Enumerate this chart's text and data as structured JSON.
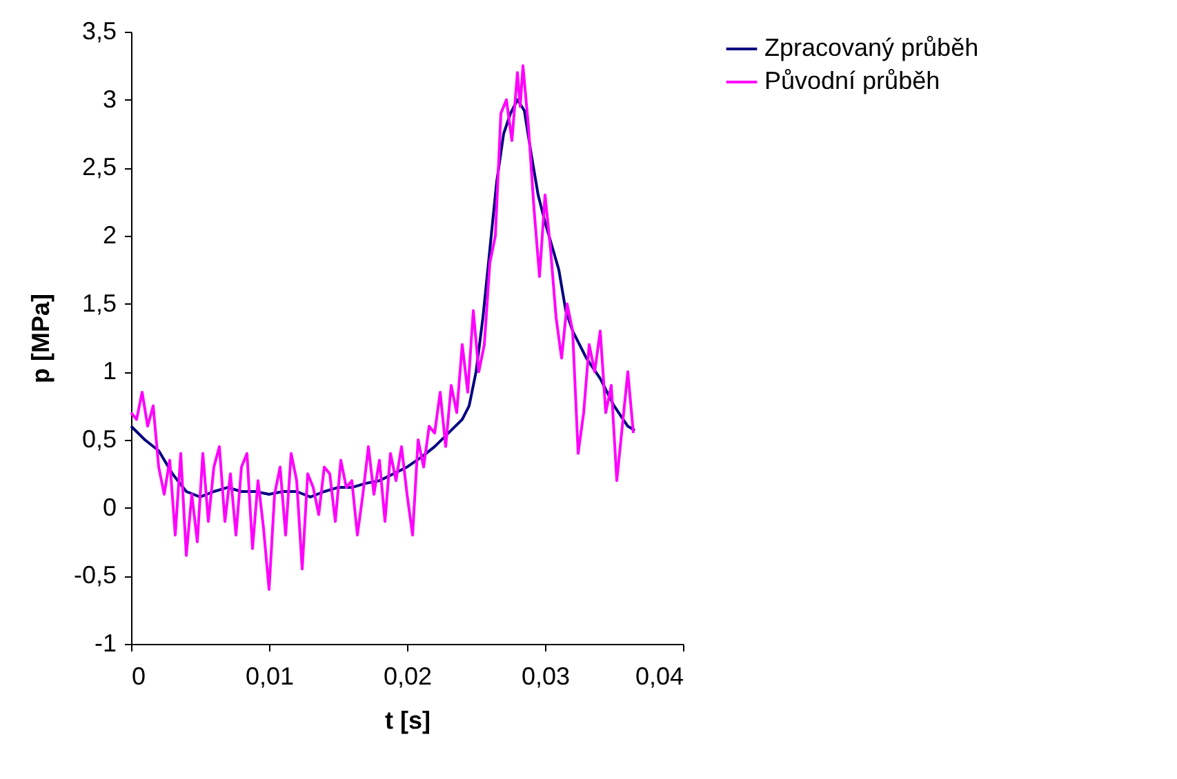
{
  "chart_data": {
    "type": "line",
    "xlabel": "t [s]",
    "ylabel": "p [MPa]",
    "xlim": [
      0,
      0.04
    ],
    "ylim": [
      -1,
      3.5
    ],
    "xticks": [
      {
        "value": 0,
        "label": "0"
      },
      {
        "value": 0.01,
        "label": "0,01"
      },
      {
        "value": 0.02,
        "label": "0,02"
      },
      {
        "value": 0.03,
        "label": "0,03"
      },
      {
        "value": 0.04,
        "label": "0,04"
      }
    ],
    "yticks": [
      {
        "value": -1,
        "label": "-1"
      },
      {
        "value": -0.5,
        "label": "-0,5"
      },
      {
        "value": 0,
        "label": "0"
      },
      {
        "value": 0.5,
        "label": "0,5"
      },
      {
        "value": 1,
        "label": "1"
      },
      {
        "value": 1.5,
        "label": "1,5"
      },
      {
        "value": 2,
        "label": "2"
      },
      {
        "value": 2.5,
        "label": "2,5"
      },
      {
        "value": 3,
        "label": "3"
      },
      {
        "value": 3.5,
        "label": "3,5"
      }
    ],
    "grid": false,
    "legend": "right",
    "marker": "none",
    "line_style": "solid",
    "series": [
      {
        "name": "Zpracovaný průběh",
        "color": "#000080",
        "x": [
          0,
          0.001,
          0.002,
          0.003,
          0.004,
          0.005,
          0.006,
          0.007,
          0.008,
          0.009,
          0.01,
          0.011,
          0.012,
          0.013,
          0.014,
          0.015,
          0.016,
          0.017,
          0.018,
          0.019,
          0.02,
          0.021,
          0.022,
          0.023,
          0.024,
          0.0245,
          0.025,
          0.0255,
          0.026,
          0.0265,
          0.027,
          0.0275,
          0.028,
          0.0285,
          0.029,
          0.0295,
          0.03,
          0.031,
          0.0315,
          0.032,
          0.033,
          0.034,
          0.035,
          0.036,
          0.0365
        ],
        "values": [
          0.6,
          0.5,
          0.42,
          0.25,
          0.12,
          0.08,
          0.12,
          0.15,
          0.12,
          0.12,
          0.1,
          0.12,
          0.12,
          0.08,
          0.12,
          0.15,
          0.15,
          0.18,
          0.2,
          0.25,
          0.3,
          0.37,
          0.45,
          0.55,
          0.65,
          0.75,
          1.0,
          1.4,
          1.9,
          2.4,
          2.75,
          2.9,
          3.0,
          2.92,
          2.6,
          2.3,
          2.1,
          1.75,
          1.45,
          1.3,
          1.1,
          0.95,
          0.75,
          0.6,
          0.57
        ]
      },
      {
        "name": "Původní průběh",
        "color": "#ff00ff",
        "x": [
          0,
          0.0004,
          0.0008,
          0.0012,
          0.0016,
          0.002,
          0.0024,
          0.0028,
          0.0032,
          0.0036,
          0.004,
          0.0044,
          0.0048,
          0.0052,
          0.0056,
          0.006,
          0.0064,
          0.0068,
          0.0072,
          0.0076,
          0.008,
          0.0084,
          0.0088,
          0.0092,
          0.0096,
          0.01,
          0.0104,
          0.0108,
          0.0112,
          0.0116,
          0.012,
          0.0124,
          0.0128,
          0.0132,
          0.0136,
          0.014,
          0.0144,
          0.0148,
          0.0152,
          0.0156,
          0.016,
          0.0164,
          0.0168,
          0.0172,
          0.0176,
          0.018,
          0.0184,
          0.0188,
          0.0192,
          0.0196,
          0.02,
          0.0204,
          0.0208,
          0.0212,
          0.0216,
          0.022,
          0.0224,
          0.0228,
          0.0232,
          0.0236,
          0.024,
          0.0244,
          0.0248,
          0.0252,
          0.0256,
          0.026,
          0.0264,
          0.0268,
          0.0272,
          0.0276,
          0.028,
          0.0282,
          0.0284,
          0.0288,
          0.0292,
          0.0296,
          0.03,
          0.0304,
          0.0308,
          0.0312,
          0.0316,
          0.032,
          0.0324,
          0.0328,
          0.0332,
          0.0336,
          0.034,
          0.0344,
          0.0348,
          0.0352,
          0.0356,
          0.036,
          0.0364
        ],
        "values": [
          0.7,
          0.65,
          0.85,
          0.6,
          0.75,
          0.3,
          0.1,
          0.35,
          -0.2,
          0.4,
          -0.35,
          0.1,
          -0.25,
          0.4,
          -0.1,
          0.3,
          0.45,
          -0.1,
          0.25,
          -0.2,
          0.3,
          0.4,
          -0.3,
          0.2,
          -0.15,
          -0.6,
          0.1,
          0.3,
          -0.2,
          0.4,
          0.2,
          -0.45,
          0.25,
          0.15,
          -0.05,
          0.3,
          0.25,
          -0.1,
          0.35,
          0.15,
          0.2,
          -0.2,
          0.1,
          0.45,
          0.1,
          0.35,
          -0.1,
          0.4,
          0.2,
          0.45,
          0.1,
          -0.2,
          0.5,
          0.3,
          0.6,
          0.55,
          0.85,
          0.45,
          0.9,
          0.7,
          1.2,
          0.85,
          1.45,
          1.0,
          1.2,
          1.8,
          2.0,
          2.9,
          3.0,
          2.7,
          3.2,
          2.95,
          3.25,
          2.8,
          2.2,
          1.7,
          2.3,
          1.9,
          1.4,
          1.1,
          1.5,
          1.3,
          0.4,
          0.7,
          1.2,
          1.0,
          1.3,
          0.7,
          0.9,
          0.2,
          0.6,
          1.0,
          0.55
        ]
      }
    ]
  }
}
